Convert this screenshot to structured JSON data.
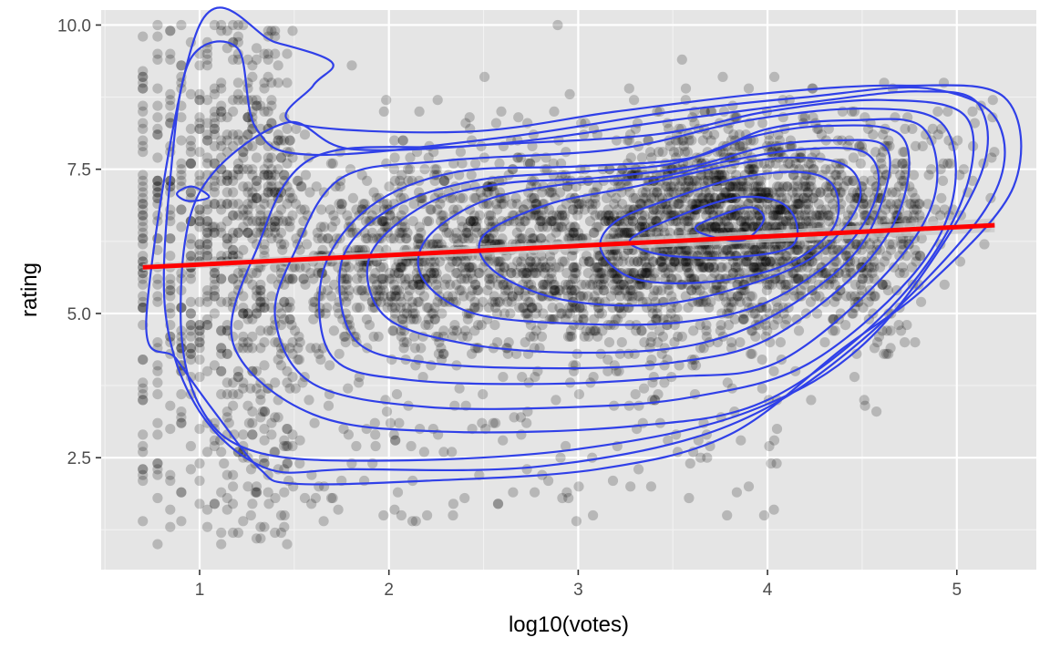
{
  "chart_data": {
    "type": "scatter",
    "xlabel": "log10(votes)",
    "ylabel": "rating",
    "xlim": [
      0.48,
      5.42
    ],
    "ylim": [
      0.56,
      10.26
    ],
    "x_ticks": [
      {
        "value": 1,
        "label": "1"
      },
      {
        "value": 2,
        "label": "2"
      },
      {
        "value": 3,
        "label": "3"
      },
      {
        "value": 4,
        "label": "4"
      },
      {
        "value": 5,
        "label": "5"
      }
    ],
    "y_ticks": [
      {
        "value": 2.5,
        "label": "2.5"
      },
      {
        "value": 5.0,
        "label": "5.0"
      },
      {
        "value": 7.5,
        "label": "7.5"
      },
      {
        "value": 10.0,
        "label": "10.0"
      }
    ],
    "grid": true,
    "panel_background": "#e5e5e5",
    "colors": {
      "points": "#000000",
      "smooth": "#ff0000",
      "band": "#c8c8c8",
      "contour": "#3040e8"
    },
    "points_opacity": 0.2,
    "smooth_line": {
      "x": [
        0.7,
        5.2
      ],
      "y": [
        5.8,
        6.53
      ],
      "band_halfwidth_start": 0.06,
      "band_halfwidth_end": 0.12
    },
    "density_contours": [
      [
        [
          3.93,
          6.83
        ],
        [
          3.98,
          6.62
        ],
        [
          3.88,
          6.28
        ],
        [
          3.72,
          6.32
        ],
        [
          3.62,
          6.5
        ],
        [
          3.82,
          6.78
        ]
      ],
      [
        [
          3.28,
          6.3
        ],
        [
          3.5,
          6.65
        ],
        [
          3.82,
          7.0
        ],
        [
          4.05,
          6.95
        ],
        [
          4.15,
          6.6
        ],
        [
          4.12,
          6.15
        ],
        [
          3.85,
          5.98
        ],
        [
          3.55,
          5.98
        ],
        [
          3.34,
          6.1
        ]
      ],
      [
        [
          3.12,
          6.1
        ],
        [
          3.2,
          6.6
        ],
        [
          3.5,
          7.0
        ],
        [
          3.85,
          7.35
        ],
        [
          4.18,
          7.45
        ],
        [
          4.35,
          7.2
        ],
        [
          4.35,
          6.5
        ],
        [
          4.1,
          5.85
        ],
        [
          3.7,
          5.55
        ],
        [
          3.3,
          5.6
        ]
      ],
      [
        [
          2.5,
          6.35
        ],
        [
          2.85,
          6.9
        ],
        [
          3.3,
          7.2
        ],
        [
          3.7,
          7.5
        ],
        [
          4.1,
          7.7
        ],
        [
          4.42,
          7.55
        ],
        [
          4.48,
          6.9
        ],
        [
          4.25,
          6.0
        ],
        [
          3.85,
          5.45
        ],
        [
          3.4,
          5.15
        ],
        [
          2.9,
          5.25
        ],
        [
          2.55,
          5.75
        ]
      ],
      [
        [
          2.2,
          6.3
        ],
        [
          2.5,
          6.95
        ],
        [
          2.95,
          7.25
        ],
        [
          3.4,
          7.35
        ],
        [
          3.8,
          7.65
        ],
        [
          4.2,
          7.85
        ],
        [
          4.52,
          7.78
        ],
        [
          4.58,
          7.1
        ],
        [
          4.4,
          6.1
        ],
        [
          4.0,
          5.2
        ],
        [
          3.55,
          4.85
        ],
        [
          3.0,
          4.82
        ],
        [
          2.45,
          5.0
        ],
        [
          2.18,
          5.6
        ]
      ],
      [
        [
          1.9,
          6.0
        ],
        [
          2.2,
          6.9
        ],
        [
          2.6,
          7.25
        ],
        [
          3.1,
          7.35
        ],
        [
          3.6,
          7.55
        ],
        [
          4.0,
          7.9
        ],
        [
          4.35,
          8.0
        ],
        [
          4.62,
          7.9
        ],
        [
          4.62,
          7.1
        ],
        [
          4.45,
          6.0
        ],
        [
          4.05,
          5.0
        ],
        [
          3.6,
          4.45
        ],
        [
          3.0,
          4.32
        ],
        [
          2.4,
          4.48
        ],
        [
          1.98,
          4.95
        ]
      ],
      [
        [
          1.75,
          5.9
        ],
        [
          2.0,
          6.8
        ],
        [
          2.45,
          7.3
        ],
        [
          3.0,
          7.45
        ],
        [
          3.5,
          7.6
        ],
        [
          3.9,
          8.05
        ],
        [
          4.3,
          8.25
        ],
        [
          4.7,
          8.1
        ],
        [
          4.72,
          7.0
        ],
        [
          4.5,
          5.8
        ],
        [
          4.0,
          4.55
        ],
        [
          3.5,
          4.15
        ],
        [
          2.9,
          4.05
        ],
        [
          2.2,
          4.15
        ],
        [
          1.82,
          4.55
        ]
      ],
      [
        [
          1.65,
          5.7
        ],
        [
          1.9,
          6.85
        ],
        [
          2.35,
          7.45
        ],
        [
          3.0,
          7.55
        ],
        [
          3.6,
          7.7
        ],
        [
          4.0,
          8.2
        ],
        [
          4.45,
          8.35
        ],
        [
          4.82,
          8.22
        ],
        [
          4.88,
          7.0
        ],
        [
          4.6,
          5.6
        ],
        [
          4.05,
          4.15
        ],
        [
          3.5,
          3.9
        ],
        [
          2.85,
          3.78
        ],
        [
          2.1,
          3.85
        ],
        [
          1.7,
          4.25
        ]
      ],
      [
        [
          1.5,
          6.05
        ],
        [
          1.75,
          7.35
        ],
        [
          2.3,
          7.65
        ],
        [
          3.2,
          7.85
        ],
        [
          3.9,
          8.35
        ],
        [
          4.5,
          8.55
        ],
        [
          4.92,
          8.3
        ],
        [
          4.98,
          7.0
        ],
        [
          4.75,
          5.6
        ],
        [
          4.2,
          4.1
        ],
        [
          3.6,
          3.55
        ],
        [
          3.0,
          3.38
        ],
        [
          2.2,
          3.38
        ],
        [
          1.6,
          3.78
        ],
        [
          1.4,
          4.9
        ]
      ],
      [
        [
          1.3,
          6.1
        ],
        [
          1.6,
          7.7
        ],
        [
          2.4,
          7.9
        ],
        [
          3.4,
          8.1
        ],
        [
          4.0,
          8.5
        ],
        [
          4.6,
          8.7
        ],
        [
          5.05,
          8.4
        ],
        [
          5.02,
          6.9
        ],
        [
          4.65,
          5.1
        ],
        [
          4.0,
          3.5
        ],
        [
          3.3,
          3.05
        ],
        [
          2.3,
          2.95
        ],
        [
          1.6,
          3.25
        ],
        [
          1.18,
          4.45
        ]
      ],
      [
        [
          1.0,
          7.1
        ],
        [
          1.45,
          8.3
        ],
        [
          1.8,
          7.85
        ],
        [
          2.6,
          7.95
        ],
        [
          3.5,
          8.35
        ],
        [
          4.2,
          8.65
        ],
        [
          4.8,
          8.85
        ],
        [
          5.12,
          8.6
        ],
        [
          5.1,
          7.2
        ],
        [
          4.55,
          4.6
        ],
        [
          3.9,
          3.3
        ],
        [
          3.0,
          2.65
        ],
        [
          2.0,
          2.45
        ],
        [
          1.3,
          2.6
        ],
        [
          1.0,
          3.4
        ],
        [
          0.9,
          5.0
        ]
      ],
      [
        [
          0.85,
          7.5
        ],
        [
          0.95,
          9.4
        ],
        [
          1.2,
          9.6
        ],
        [
          1.3,
          8.2
        ],
        [
          1.6,
          7.75
        ],
        [
          2.6,
          8.05
        ],
        [
          3.5,
          8.5
        ],
        [
          4.2,
          8.75
        ],
        [
          4.85,
          8.9
        ],
        [
          5.22,
          8.3
        ],
        [
          5.15,
          6.8
        ],
        [
          4.45,
          4.4
        ],
        [
          3.75,
          3.0
        ],
        [
          2.8,
          2.35
        ],
        [
          1.8,
          2.3
        ],
        [
          1.35,
          2.32
        ],
        [
          1.0,
          3.3
        ],
        [
          0.82,
          5.0
        ]
      ],
      [
        [
          1.0,
          10.0
        ],
        [
          1.4,
          9.7
        ],
        [
          1.7,
          9.35
        ],
        [
          1.6,
          8.95
        ],
        [
          1.5,
          8.3
        ],
        [
          2.4,
          8.15
        ],
        [
          3.2,
          8.5
        ],
        [
          4.0,
          8.82
        ],
        [
          4.7,
          8.95
        ],
        [
          5.25,
          8.75
        ],
        [
          5.3,
          7.2
        ],
        [
          4.85,
          5.5
        ],
        [
          4.4,
          4.4
        ],
        [
          3.8,
          2.9
        ],
        [
          3.1,
          2.3
        ],
        [
          2.2,
          2.1
        ],
        [
          1.5,
          2.05
        ],
        [
          1.32,
          2.3
        ],
        [
          1.1,
          3.2
        ],
        [
          0.88,
          4.2
        ],
        [
          0.72,
          5.0
        ]
      ],
      [
        [
          0.96,
          7.2
        ],
        [
          1.05,
          7.02
        ],
        [
          0.94,
          6.95
        ],
        [
          0.88,
          7.08
        ]
      ]
    ]
  }
}
